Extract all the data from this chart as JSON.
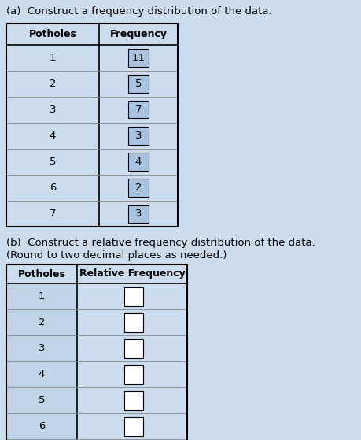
{
  "title_a": "(a)  Construct a frequency distribution of the data.",
  "title_b_line1": "(b)  Construct a relative frequency distribution of the data.",
  "title_b_line2": "(Round to two decimal places as needed.)",
  "potholes": [
    1,
    2,
    3,
    4,
    5,
    6,
    7
  ],
  "frequencies": [
    11,
    5,
    7,
    3,
    4,
    2,
    3
  ],
  "col1_header_a": "Potholes",
  "col2_header_a": "Frequency",
  "col1_header_b": "Potholes",
  "col2_header_b": "Relative Frequency",
  "page_bg": "#ccddf0",
  "table_bg_a": "#ccddf0",
  "freq_cell_bg": "#a8c4e0",
  "table_bg_b_left": "#c0d4e8",
  "table_bg_b_right": "#ccddf0",
  "header_bg": "#ccddf0",
  "white": "#ffffff",
  "black": "#000000",
  "font_size_title": 9.5,
  "font_size_header": 9,
  "font_size_cell": 9.5
}
